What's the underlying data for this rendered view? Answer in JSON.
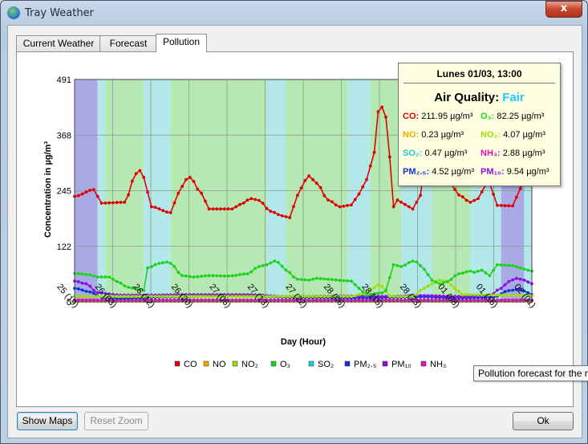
{
  "window": {
    "title": "Tray Weather",
    "close_label": "x"
  },
  "tabs": [
    {
      "label": "Current Weather",
      "active": false
    },
    {
      "label": "Forecast",
      "active": false
    },
    {
      "label": "Pollution",
      "active": true
    }
  ],
  "buttons": {
    "show_maps": "Show Maps",
    "reset_zoom": "Reset Zoom",
    "ok": "Ok"
  },
  "hint_text": "Pollution forecast for the n",
  "tooltip": {
    "date": "Lunes 01/03, 13:00",
    "aq_label": "Air Quality:",
    "aq_value": "Fair",
    "aq_color": "#26c6ff",
    "items": [
      {
        "name": "CO:",
        "value": "211.95 µg/m³",
        "color": "#e00000"
      },
      {
        "name": "O₃:",
        "value": "82.25 µg/m³",
        "color": "#1fd21f"
      },
      {
        "name": "NO:",
        "value": "0.23 µg/m³",
        "color": "#f2a800"
      },
      {
        "name": "NO₂:",
        "value": "4.07 µg/m³",
        "color": "#9de000"
      },
      {
        "name": "SO₂:",
        "value": "0.47 µg/m³",
        "color": "#22c7d9"
      },
      {
        "name": "NH₃:",
        "value": "2.88 µg/m³",
        "color": "#e010b0"
      },
      {
        "name": "PM₂.₅:",
        "value": "4.52 µg/m³",
        "color": "#1530d8"
      },
      {
        "name": "PM₁₀:",
        "value": "9.54 µg/m³",
        "color": "#8a10e0"
      }
    ]
  },
  "chart_data": {
    "type": "line",
    "title": "",
    "xlabel": "Day (Hour)",
    "ylabel": "Concentration in µg/m³",
    "ylim": [
      0,
      491
    ],
    "yticks": [
      "0",
      "122",
      "245",
      "368",
      "491"
    ],
    "x_tick_labels": [
      "25 (19)",
      "26 (03)",
      "26 (12)",
      "26 (20)",
      "27 (05)",
      "27 (13)",
      "27 (22)",
      "28 (06)",
      "28 (15)",
      "28 (23)",
      "01 (08)",
      "01 (16)",
      "02 (01)"
    ],
    "x_count": 120,
    "grid": true,
    "legend_position": "bottom",
    "background_bands": [
      {
        "quality": "Poor",
        "color": "#a9a9e6",
        "from": 0,
        "to": 6
      },
      {
        "quality": "Fair",
        "color": "#b3e8ea",
        "from": 6,
        "to": 8
      },
      {
        "quality": "Good",
        "color": "#b6e8b4",
        "from": 8,
        "to": 18
      },
      {
        "quality": "Fair",
        "color": "#b3e8ea",
        "from": 18,
        "to": 25
      },
      {
        "quality": "Good",
        "color": "#b6e8b4",
        "from": 25,
        "to": 50
      },
      {
        "quality": "Fair",
        "color": "#b3e8ea",
        "from": 50,
        "to": 55
      },
      {
        "quality": "Good",
        "color": "#b6e8b4",
        "from": 55,
        "to": 71
      },
      {
        "quality": "Fair",
        "color": "#b3e8ea",
        "from": 71,
        "to": 77
      },
      {
        "quality": "Good",
        "color": "#b6e8b4",
        "from": 77,
        "to": 85
      },
      {
        "quality": "Fair",
        "color": "#b3e8ea",
        "from": 85,
        "to": 93
      },
      {
        "quality": "Good",
        "color": "#b6e8b4",
        "from": 93,
        "to": 103
      },
      {
        "quality": "Fair",
        "color": "#b3e8ea",
        "from": 103,
        "to": 111
      },
      {
        "quality": "Poor",
        "color": "#a9a9e6",
        "from": 111,
        "to": 117
      },
      {
        "quality": "Fair",
        "color": "#b3e8ea",
        "from": 117,
        "to": 120
      }
    ],
    "series": [
      {
        "name": "CO",
        "color": "#e00000",
        "keypoints": [
          [
            0,
            233
          ],
          [
            5,
            248
          ],
          [
            7,
            218
          ],
          [
            13,
            220
          ],
          [
            16,
            283
          ],
          [
            17,
            290
          ],
          [
            18,
            275
          ],
          [
            20,
            210
          ],
          [
            25,
            197
          ],
          [
            27,
            240
          ],
          [
            29,
            270
          ],
          [
            30,
            275
          ],
          [
            33,
            240
          ],
          [
            35,
            205
          ],
          [
            41,
            205
          ],
          [
            43,
            215
          ],
          [
            46,
            228
          ],
          [
            48,
            224
          ],
          [
            51,
            200
          ],
          [
            54,
            190
          ],
          [
            56,
            186
          ],
          [
            58,
            235
          ],
          [
            60,
            268
          ],
          [
            61,
            278
          ],
          [
            63,
            262
          ],
          [
            66,
            225
          ],
          [
            69,
            210
          ],
          [
            72,
            214
          ],
          [
            74,
            238
          ],
          [
            76,
            270
          ],
          [
            78,
            330
          ],
          [
            79,
            420
          ],
          [
            80,
            430
          ],
          [
            81,
            408
          ],
          [
            82,
            320
          ],
          [
            83,
            210
          ],
          [
            84,
            225
          ],
          [
            86,
            215
          ],
          [
            88,
            205
          ],
          [
            90,
            235
          ],
          [
            91,
            300
          ],
          [
            93,
            330
          ],
          [
            95,
            290
          ],
          [
            98,
            260
          ],
          [
            100,
            236
          ],
          [
            103,
            220
          ],
          [
            105,
            228
          ],
          [
            107,
            258
          ],
          [
            108,
            262
          ],
          [
            110,
            213
          ],
          [
            114,
            212
          ],
          [
            116,
            250
          ],
          [
            118,
            310
          ],
          [
            119,
            330
          ]
        ]
      },
      {
        "name": "O3",
        "color": "#1fd21f",
        "keypoints": [
          [
            0,
            63
          ],
          [
            4,
            60
          ],
          [
            6,
            55
          ],
          [
            9,
            55
          ],
          [
            11,
            45
          ],
          [
            14,
            32
          ],
          [
            18,
            25
          ],
          [
            19,
            75
          ],
          [
            22,
            85
          ],
          [
            24,
            88
          ],
          [
            25,
            85
          ],
          [
            28,
            58
          ],
          [
            31,
            55
          ],
          [
            35,
            58
          ],
          [
            40,
            57
          ],
          [
            45,
            62
          ],
          [
            48,
            78
          ],
          [
            50,
            82
          ],
          [
            52,
            90
          ],
          [
            53,
            87
          ],
          [
            55,
            70
          ],
          [
            58,
            50
          ],
          [
            61,
            48
          ],
          [
            63,
            52
          ],
          [
            66,
            50
          ],
          [
            70,
            47
          ],
          [
            72,
            46
          ],
          [
            74,
            30
          ],
          [
            76,
            15
          ],
          [
            78,
            18
          ],
          [
            80,
            20
          ],
          [
            81,
            25
          ],
          [
            83,
            82
          ],
          [
            85,
            78
          ],
          [
            88,
            90
          ],
          [
            89,
            88
          ],
          [
            91,
            72
          ],
          [
            93,
            48
          ],
          [
            95,
            40
          ],
          [
            97,
            45
          ],
          [
            100,
            62
          ],
          [
            103,
            68
          ],
          [
            104,
            65
          ],
          [
            106,
            70
          ],
          [
            108,
            58
          ],
          [
            110,
            82
          ],
          [
            114,
            80
          ],
          [
            116,
            75
          ],
          [
            118,
            70
          ],
          [
            119,
            68
          ]
        ]
      },
      {
        "name": "NO2",
        "color": "#9de000",
        "keypoints": [
          [
            0,
            12
          ],
          [
            72,
            12
          ],
          [
            75,
            18
          ],
          [
            77,
            25
          ],
          [
            79,
            38
          ],
          [
            80,
            35
          ],
          [
            82,
            12
          ],
          [
            88,
            12
          ],
          [
            91,
            30
          ],
          [
            93,
            40
          ],
          [
            95,
            48
          ],
          [
            97,
            45
          ],
          [
            99,
            30
          ],
          [
            101,
            16
          ],
          [
            119,
            14
          ]
        ]
      },
      {
        "name": "NO",
        "color": "#f2a800",
        "keypoints": [
          [
            0,
            1
          ],
          [
            119,
            1
          ]
        ]
      },
      {
        "name": "SO2",
        "color": "#22c7d9",
        "keypoints": [
          [
            0,
            3
          ],
          [
            119,
            3
          ]
        ]
      },
      {
        "name": "PM2.5",
        "color": "#1530d8",
        "keypoints": [
          [
            0,
            30
          ],
          [
            4,
            22
          ],
          [
            7,
            10
          ],
          [
            12,
            8
          ],
          [
            25,
            11
          ],
          [
            40,
            13
          ],
          [
            60,
            10
          ],
          [
            75,
            9
          ],
          [
            90,
            11
          ],
          [
            100,
            9
          ],
          [
            109,
            10
          ],
          [
            113,
            25
          ],
          [
            116,
            28
          ],
          [
            118,
            20
          ],
          [
            119,
            16
          ]
        ]
      },
      {
        "name": "PM10",
        "color": "#8a10e0",
        "keypoints": [
          [
            0,
            46
          ],
          [
            3,
            40
          ],
          [
            6,
            20
          ],
          [
            12,
            15
          ],
          [
            20,
            15
          ],
          [
            30,
            16
          ],
          [
            45,
            16
          ],
          [
            55,
            12
          ],
          [
            70,
            13
          ],
          [
            80,
            12
          ],
          [
            90,
            14
          ],
          [
            100,
            12
          ],
          [
            108,
            14
          ],
          [
            111,
            30
          ],
          [
            113,
            45
          ],
          [
            115,
            52
          ],
          [
            117,
            48
          ],
          [
            119,
            40
          ]
        ]
      },
      {
        "name": "NH3",
        "color": "#e010b0",
        "keypoints": [
          [
            0,
            4
          ],
          [
            119,
            4
          ]
        ]
      }
    ],
    "legend": [
      {
        "label": "CO",
        "color": "#e00000"
      },
      {
        "label": "NO",
        "color": "#f2a800"
      },
      {
        "label": "NO₂",
        "color": "#9de000"
      },
      {
        "label": "O₃",
        "color": "#1fd21f"
      },
      {
        "label": "SO₂",
        "color": "#22c7d9"
      },
      {
        "label": "PM₂.₅",
        "color": "#1530d8"
      },
      {
        "label": "PM₁₀",
        "color": "#8a10e0"
      },
      {
        "label": "NH₃",
        "color": "#e010b0"
      }
    ]
  }
}
